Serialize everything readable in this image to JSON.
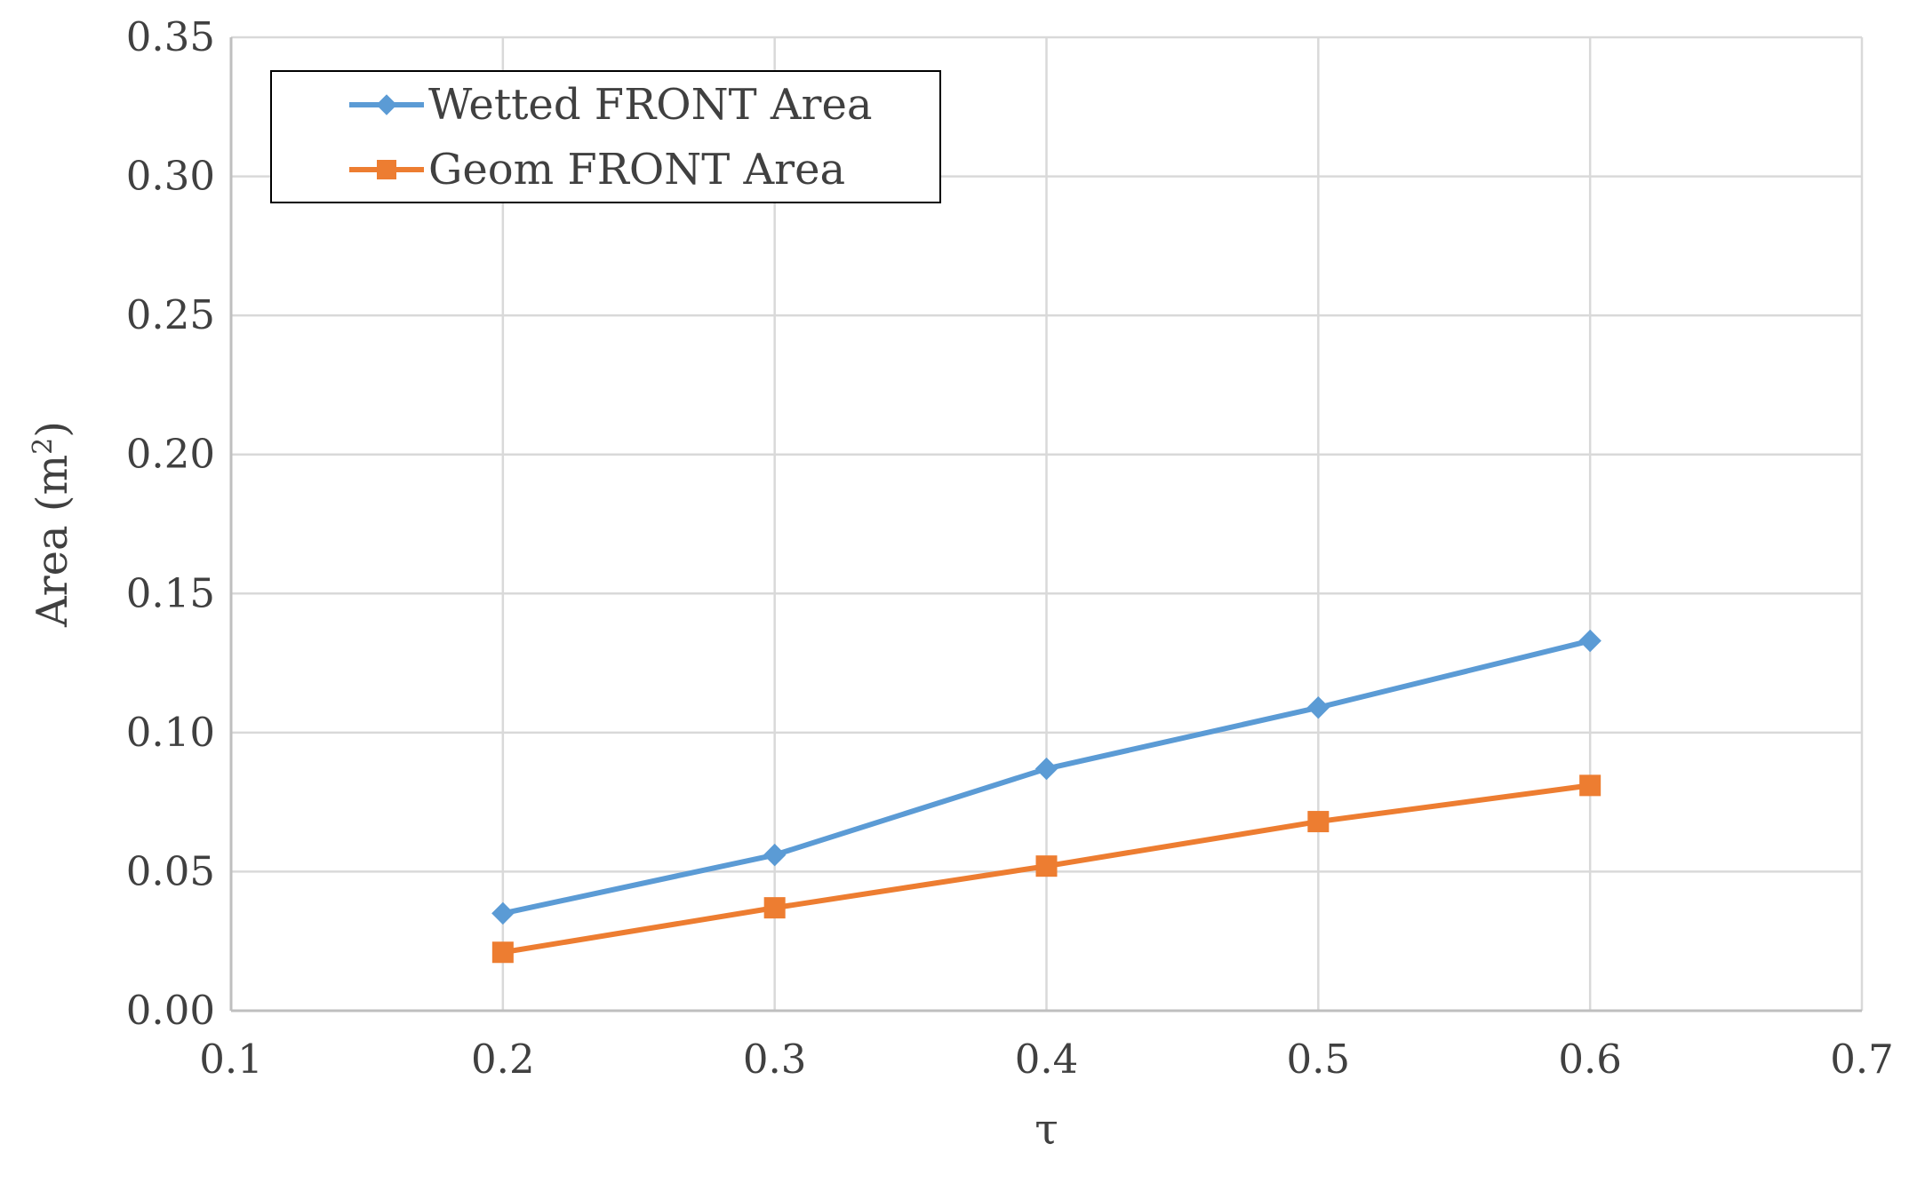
{
  "chart_data": {
    "type": "line",
    "title": "",
    "xlabel": "τ",
    "ylabel_text": "Area (m",
    "ylabel_sup": "2",
    "ylabel_close": ")",
    "xlim": [
      0.1,
      0.7
    ],
    "ylim": [
      0.0,
      0.35
    ],
    "x_ticks": [
      "0.1",
      "0.2",
      "0.3",
      "0.4",
      "0.5",
      "0.6",
      "0.7"
    ],
    "y_ticks": [
      "0.00",
      "0.05",
      "0.10",
      "0.15",
      "0.20",
      "0.25",
      "0.30",
      "0.35"
    ],
    "grid": true,
    "legend_position": "top-left",
    "x": [
      0.2,
      0.3,
      0.4,
      0.5,
      0.6
    ],
    "series": [
      {
        "name": "Wetted FRONT Area",
        "values": [
          0.035,
          0.056,
          0.087,
          0.109,
          0.133
        ],
        "color": "#5B9BD5",
        "marker": "diamond"
      },
      {
        "name": "Geom FRONT Area",
        "values": [
          0.021,
          0.037,
          0.052,
          0.068,
          0.081
        ],
        "color": "#ED7D31",
        "marker": "square"
      }
    ]
  }
}
